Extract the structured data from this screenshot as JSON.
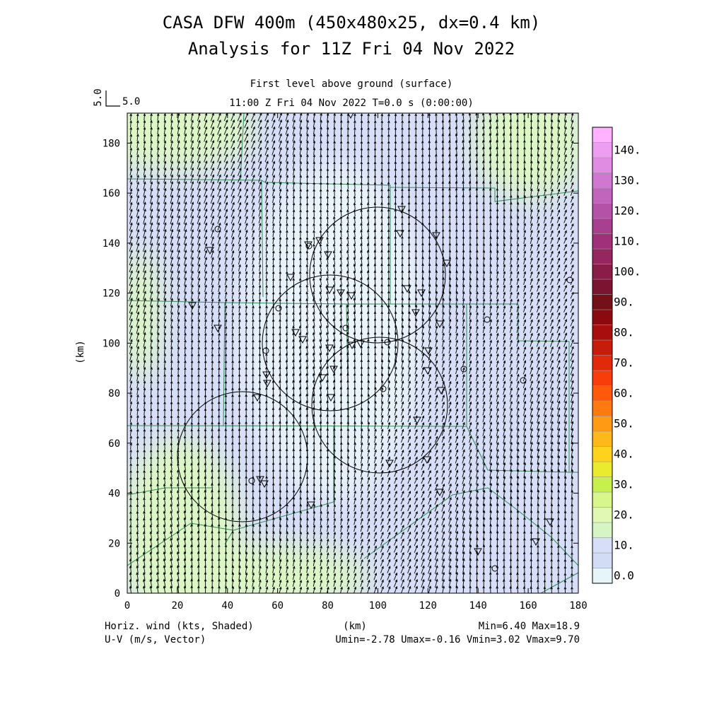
{
  "header": {
    "title_line1": "CASA DFW 400m (450x480x25, dx=0.4 km)",
    "title_line2": "Analysis for 11Z Fri 04 Nov 2022",
    "subtitle_line1": "First level above ground (surface)",
    "subtitle_line2": "11:00 Z Fri 04 Nov 2022    T=0.0 s (0:00:00)"
  },
  "vector_key": {
    "vertical_label": "5.0",
    "horizontal_label": "5.0"
  },
  "footer": {
    "left_line1": "Horiz. wind (kts, Shaded)",
    "left_line2": "U-V (m/s, Vector)",
    "center_label": "(km)",
    "right_line1": "Min=6.40 Max=18.9",
    "right_line2": "Umin=-2.78 Umax=-0.16 Vmin=3.02 Vmax=9.70"
  },
  "chart_data": {
    "type": "heatmap",
    "title": "CASA DFW 400m (450x480x25, dx=0.4 km)",
    "subtitle": "Analysis for 11Z Fri 04 Nov 2022",
    "field": "Horizontal wind speed (kts, shaded) with U-V wind vectors (m/s)",
    "xlabel": "",
    "ylabel": "(km)",
    "xlim": [
      0,
      180
    ],
    "ylim": [
      0,
      192
    ],
    "x_ticks": [
      0,
      20,
      40,
      60,
      80,
      100,
      120,
      140,
      160,
      180
    ],
    "y_ticks": [
      0,
      20,
      40,
      60,
      80,
      100,
      120,
      140,
      160,
      180
    ],
    "stats": {
      "min": 6.4,
      "max": 18.9,
      "umin": -2.78,
      "umax": -0.16,
      "vmin": 3.02,
      "vmax": 9.7
    },
    "colorbar": {
      "levels": [
        0,
        5,
        10,
        15,
        20,
        25,
        30,
        35,
        40,
        45,
        50,
        55,
        60,
        65,
        70,
        75,
        80,
        85,
        90,
        95,
        100,
        105,
        110,
        115,
        120,
        125,
        130,
        135,
        140,
        145
      ],
      "tick_labels": [
        "0.0",
        "10.",
        "20.",
        "30.",
        "40.",
        "50.",
        "60.",
        "70.",
        "80.",
        "90.",
        "100.",
        "110.",
        "120.",
        "130.",
        "140."
      ],
      "colors": [
        "#e6f5fa",
        "#d2dcf5",
        "#d6def8",
        "#d6f5c4",
        "#e1f8b4",
        "#d8f78a",
        "#c6f04e",
        "#eaea2e",
        "#ffd21e",
        "#ffb81a",
        "#ff9a14",
        "#ff7a0e",
        "#ff5a0a",
        "#f83c0a",
        "#e02a0a",
        "#c81c0a",
        "#a80e0e",
        "#8a0a10",
        "#741018",
        "#7a1430",
        "#8a1c48",
        "#952660",
        "#a0307a",
        "#a84090",
        "#b452a8",
        "#c064bc",
        "#d078d0",
        "#e08ce2",
        "#ee9ef0",
        "#ffb2ff"
      ]
    },
    "shading_regions": [
      {
        "speed_range": "10-15",
        "description": "background"
      },
      {
        "speed_range": "5-10",
        "description": "interior light band"
      },
      {
        "speed_range": "15-20",
        "description": "corners and southern edge"
      }
    ],
    "radar_circles_km": [
      {
        "cx": 100,
        "cy": 128,
        "r": 27
      },
      {
        "cx": 81,
        "cy": 101,
        "r": 27
      },
      {
        "cx": 101,
        "cy": 74,
        "r": 27
      },
      {
        "cx": 46,
        "cy": 53,
        "r": 26
      }
    ],
    "vector_field": {
      "mean_u_ms": -1.5,
      "mean_v_ms": 6.5,
      "description": "southerly to south-southeasterly flow over the full domain"
    }
  }
}
